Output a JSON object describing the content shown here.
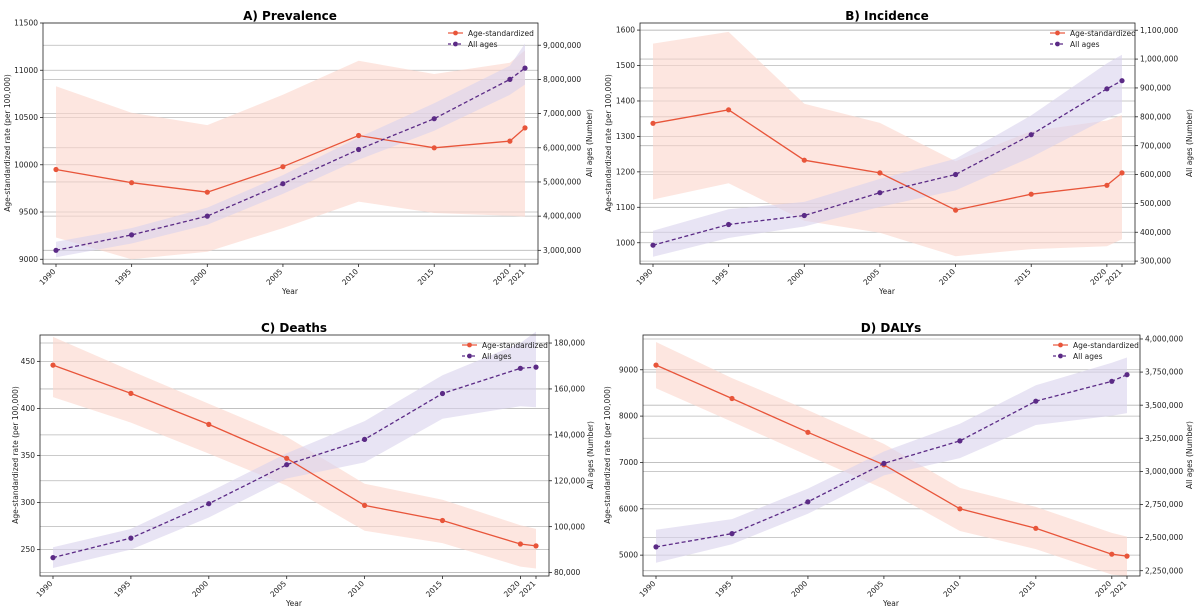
{
  "colors": {
    "age_standardized": "#e8553a",
    "all_ages": "#5b2a86",
    "age_band": "#fbd5cc",
    "all_ages_band": "#d9d2ec",
    "grid": "#b8b8b8"
  },
  "chart_data": [
    {
      "panel": "prevalence",
      "type": "line",
      "title": "A) Prevalence",
      "xlabel": "Year",
      "ylabel": "Age-standardized rate (per 100,000)",
      "y2label": "All ages (Number)",
      "x": [
        1990,
        1995,
        2000,
        2005,
        2010,
        2015,
        2020,
        2021
      ],
      "x_ticks": [
        1990,
        1995,
        2000,
        2005,
        2010,
        2015,
        2020,
        2021
      ],
      "ylim": [
        8950,
        11500
      ],
      "y_ticks": [
        9000,
        9500,
        10000,
        10500,
        11000,
        11500
      ],
      "y_tick_labels": [
        "9000",
        "9500",
        "10000",
        "10500",
        "11000",
        "11500"
      ],
      "y2lim": [
        2600000,
        9650000
      ],
      "y2_ticks": [
        3000000,
        4000000,
        5000000,
        6000000,
        7000000,
        8000000,
        9000000
      ],
      "y2_tick_labels": [
        "3,000,000",
        "4,000,000",
        "5,000,000",
        "6,000,000",
        "7,000,000",
        "8,000,000",
        "9,000,000"
      ],
      "grid": true,
      "legend_position": "top-right",
      "series": [
        {
          "name": "Age-standardized",
          "axis": "left",
          "style": "solid",
          "values": [
            9950,
            9810,
            9710,
            9980,
            10310,
            10180,
            10250,
            10390
          ],
          "lower": [
            9230,
            9000,
            9080,
            9330,
            9610,
            9490,
            9460,
            9450
          ],
          "upper": [
            10830,
            10550,
            10420,
            10740,
            11100,
            10960,
            11080,
            11210
          ]
        },
        {
          "name": "All ages",
          "axis": "right",
          "style": "dashed",
          "values": [
            3000000,
            3450000,
            4000000,
            4950000,
            5950000,
            6850000,
            8000000,
            8330000
          ],
          "lower": [
            2800000,
            3200000,
            3750000,
            4650000,
            5650000,
            6500000,
            7550000,
            7850000
          ],
          "upper": [
            3250000,
            3650000,
            4250000,
            5200000,
            6300000,
            7300000,
            8400000,
            9050000
          ]
        }
      ]
    },
    {
      "panel": "incidence",
      "type": "line",
      "title": "B) Incidence",
      "xlabel": "Year",
      "ylabel": "Age-standardized rate (per 100,000)",
      "y2label": "All ages (Number)",
      "x": [
        1990,
        1995,
        2000,
        2005,
        2010,
        2015,
        2020,
        2021
      ],
      "x_ticks": [
        1990,
        1995,
        2000,
        2005,
        2010,
        2015,
        2020,
        2021
      ],
      "ylim": [
        940,
        1620
      ],
      "y_ticks": [
        1000,
        1100,
        1200,
        1300,
        1400,
        1500,
        1600
      ],
      "y_tick_labels": [
        "1000",
        "1100",
        "1200",
        "1300",
        "1400",
        "1500",
        "1600"
      ],
      "y2lim": [
        290000,
        1125000
      ],
      "y2_ticks": [
        300000,
        400000,
        500000,
        600000,
        700000,
        800000,
        900000,
        1000000,
        1100000
      ],
      "y2_tick_labels": [
        "300,000",
        "400,000",
        "500,000",
        "600,000",
        "700,000",
        "800,000",
        "900,000",
        "1,000,000",
        "1,100,000"
      ],
      "grid": true,
      "legend_position": "top-right",
      "series": [
        {
          "name": "Age-standardized",
          "axis": "left",
          "style": "solid",
          "values": [
            1337,
            1375,
            1233,
            1197,
            1092,
            1137,
            1162,
            1197
          ],
          "lower": [
            1122,
            1168,
            1062,
            1028,
            962,
            982,
            990,
            1010
          ],
          "upper": [
            1562,
            1595,
            1392,
            1338,
            1230,
            1315,
            1345,
            1360
          ]
        },
        {
          "name": "All ages",
          "axis": "right",
          "style": "dashed",
          "values": [
            355000,
            427000,
            458000,
            537000,
            600000,
            738000,
            897000,
            925000
          ],
          "lower": [
            315000,
            380000,
            420000,
            488000,
            545000,
            660000,
            795000,
            815000
          ],
          "upper": [
            405000,
            480000,
            505000,
            585000,
            655000,
            805000,
            985000,
            1015000
          ]
        }
      ]
    },
    {
      "panel": "deaths",
      "type": "line",
      "title": "C) Deaths",
      "xlabel": "Year",
      "ylabel": "Age-standardized rate (per 100,000)",
      "y2label": "All ages (Number)",
      "x": [
        1990,
        1995,
        2000,
        2005,
        2010,
        2015,
        2020,
        2021
      ],
      "x_ticks": [
        1990,
        1995,
        2000,
        2005,
        2010,
        2015,
        2020,
        2021
      ],
      "ylim": [
        222,
        478
      ],
      "y_ticks": [
        250,
        300,
        350,
        400,
        450
      ],
      "y_tick_labels": [
        "250",
        "300",
        "350",
        "400",
        "450"
      ],
      "y2lim": [
        78500,
        183500
      ],
      "y2_ticks": [
        80000,
        100000,
        120000,
        140000,
        160000,
        180000
      ],
      "y2_tick_labels": [
        "80,000",
        "100,000",
        "120,000",
        "140,000",
        "160,000",
        "180,000"
      ],
      "grid": true,
      "legend_position": "top-right",
      "series": [
        {
          "name": "Age-standardized",
          "axis": "left",
          "style": "solid",
          "values": [
            446,
            416,
            383,
            347,
            297,
            281,
            256,
            254
          ],
          "lower": [
            412,
            385,
            352,
            318,
            270,
            257,
            232,
            230
          ],
          "upper": [
            476,
            440,
            405,
            370,
            320,
            303,
            276,
            272
          ]
        },
        {
          "name": "All ages",
          "axis": "right",
          "style": "dashed",
          "values": [
            86500,
            95000,
            110000,
            127000,
            138000,
            158000,
            169000,
            169500
          ],
          "lower": [
            82000,
            90000,
            104000,
            121000,
            128000,
            147000,
            152500,
            152000
          ],
          "upper": [
            91000,
            99000,
            115000,
            132000,
            146000,
            166000,
            180000,
            185000
          ]
        }
      ]
    },
    {
      "panel": "dalys",
      "type": "line",
      "title": "D) DALYs",
      "xlabel": "Year",
      "ylabel": "Age-standardized rate (per 100,000)",
      "y2label": "All ages (Number)",
      "x": [
        1990,
        1995,
        2000,
        2005,
        2010,
        2015,
        2020,
        2021
      ],
      "x_ticks": [
        1990,
        1995,
        2000,
        2005,
        2010,
        2015,
        2020,
        2021
      ],
      "ylim": [
        4550,
        9750
      ],
      "y_ticks": [
        5000,
        6000,
        7000,
        8000,
        9000
      ],
      "y_tick_labels": [
        "5000",
        "6000",
        "7000",
        "8000",
        "9000"
      ],
      "y2lim": [
        2210000,
        4030000
      ],
      "y2_ticks": [
        2250000,
        2500000,
        2750000,
        3000000,
        3250000,
        3500000,
        3750000,
        4000000
      ],
      "y2_tick_labels": [
        "2,250,000",
        "2,500,000",
        "2,750,000",
        "3,000,000",
        "3,250,000",
        "3,500,000",
        "3,750,000",
        "4,000,000"
      ],
      "grid": true,
      "legend_position": "top-right",
      "series": [
        {
          "name": "Age-standardized",
          "axis": "left",
          "style": "solid",
          "values": [
            9100,
            8380,
            7650,
            6950,
            6000,
            5580,
            5020,
            4980
          ],
          "lower": [
            8600,
            7880,
            7150,
            6430,
            5520,
            5130,
            4580,
            4550
          ],
          "upper": [
            9600,
            8820,
            8130,
            7400,
            6450,
            6040,
            5480,
            5400
          ]
        },
        {
          "name": "All ages",
          "axis": "right",
          "style": "dashed",
          "values": [
            2430000,
            2530000,
            2770000,
            3060000,
            3230000,
            3530000,
            3680000,
            3730000
          ],
          "lower": [
            2310000,
            2450000,
            2680000,
            2970000,
            3100000,
            3350000,
            3420000,
            3440000
          ],
          "upper": [
            2560000,
            2640000,
            2870000,
            3150000,
            3360000,
            3650000,
            3820000,
            3860000
          ]
        }
      ]
    }
  ]
}
